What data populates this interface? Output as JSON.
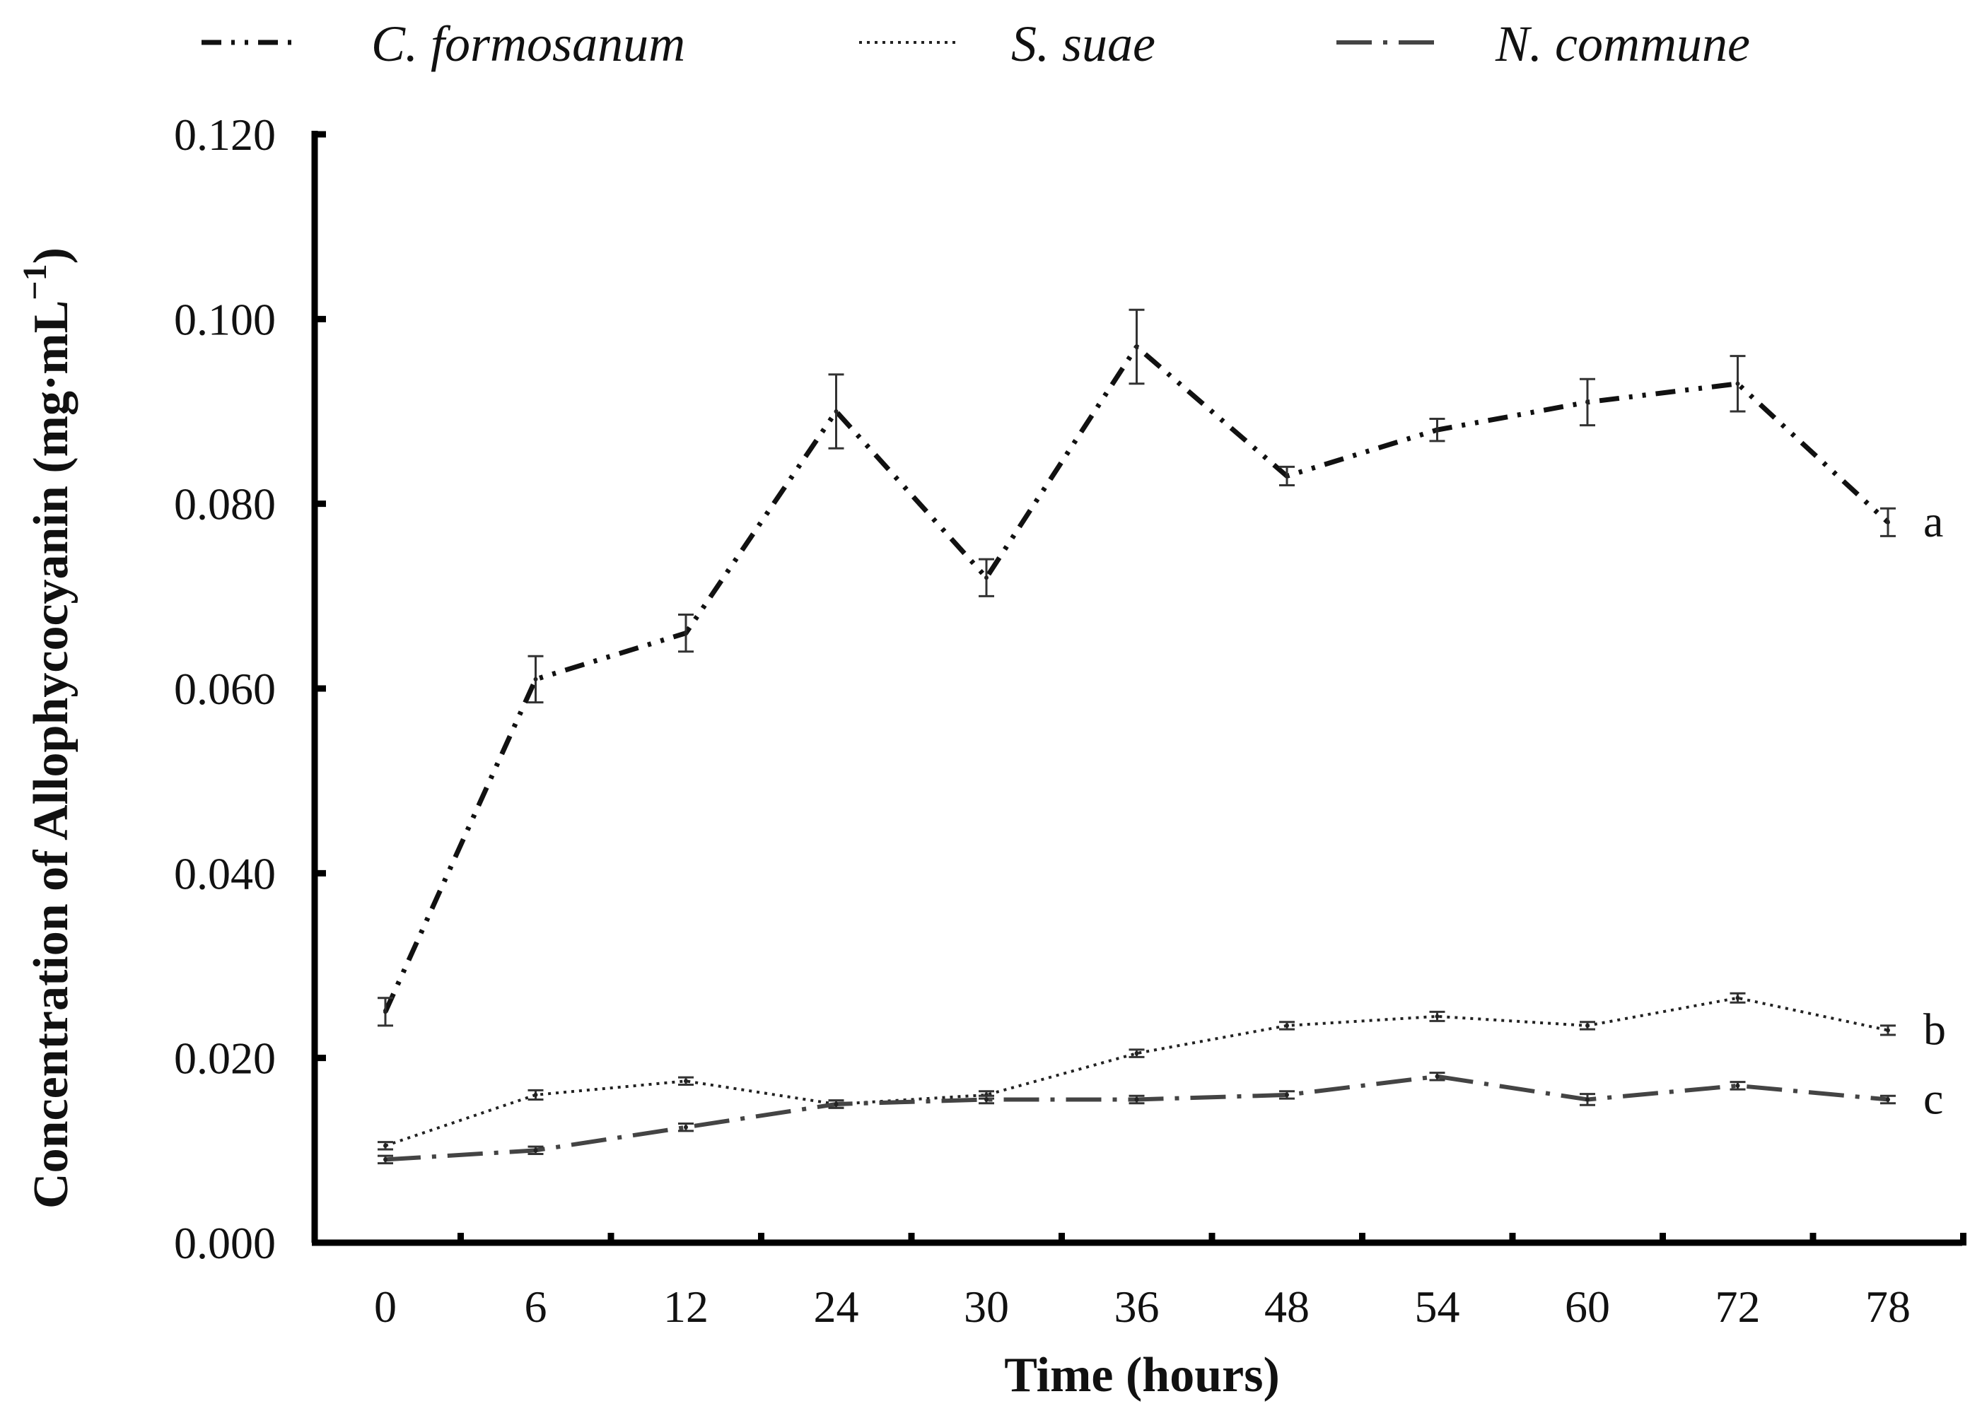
{
  "chart_data": {
    "type": "line",
    "title": "",
    "xlabel": "Time (hours)",
    "ylabel": "Concentration of Allophycocyanin (mg·mL",
    "ylabel_sup": "−1",
    "ylabel_close": ")",
    "categories": [
      "0",
      "6",
      "12",
      "24",
      "30",
      "36",
      "48",
      "54",
      "60",
      "72",
      "78"
    ],
    "y_tick_labels": [
      "0.000",
      "0.020",
      "0.040",
      "0.060",
      "0.080",
      "0.100",
      "0.120"
    ],
    "ylim": [
      0,
      0.12
    ],
    "grid": false,
    "legend_position": "top",
    "series": [
      {
        "name": "C. formosanum",
        "label": "a",
        "line_style": "dash-dot-dot",
        "color": "#111111",
        "values": [
          0.025,
          0.061,
          0.066,
          0.09,
          0.072,
          0.097,
          0.083,
          0.088,
          0.091,
          0.093,
          0.078
        ],
        "errors": [
          0.0015,
          0.0025,
          0.002,
          0.004,
          0.002,
          0.004,
          0.001,
          0.0012,
          0.0025,
          0.003,
          0.0015
        ]
      },
      {
        "name": "S. suae",
        "label": "b",
        "line_style": "dotted",
        "color": "#222222",
        "values": [
          0.0105,
          0.016,
          0.0175,
          0.015,
          0.016,
          0.0205,
          0.0235,
          0.0245,
          0.0235,
          0.0265,
          0.023
        ],
        "errors": [
          0.0004,
          0.0005,
          0.0004,
          0.0004,
          0.0004,
          0.0004,
          0.0004,
          0.0005,
          0.0004,
          0.0005,
          0.0005
        ]
      },
      {
        "name": "N. commune",
        "label": "c",
        "line_style": "long-dash-dot",
        "color": "#444444",
        "values": [
          0.009,
          0.01,
          0.0125,
          0.015,
          0.0155,
          0.0155,
          0.016,
          0.018,
          0.0155,
          0.017,
          0.0155
        ],
        "errors": [
          0.0004,
          0.0004,
          0.0004,
          0.0004,
          0.0004,
          0.0004,
          0.0004,
          0.0004,
          0.0006,
          0.0004,
          0.0004
        ]
      }
    ]
  }
}
